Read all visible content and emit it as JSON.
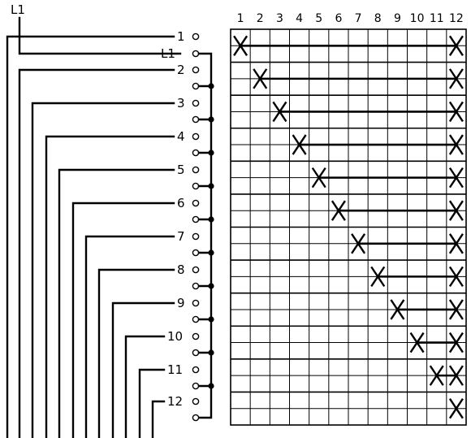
{
  "diagram": {
    "input_label": "L1",
    "column_labels": [
      "1",
      "2",
      "3",
      "4",
      "5",
      "6",
      "7",
      "8",
      "9",
      "10",
      "11",
      "12"
    ],
    "position_labels": [
      "1",
      "L1",
      "2",
      "3",
      "4",
      "5",
      "6",
      "7",
      "8",
      "9",
      "10",
      "11",
      "12"
    ],
    "positions": [
      {
        "label": "1",
        "contact_column": 1,
        "bar_to_column": 12
      },
      {
        "label": "2",
        "contact_column": 2,
        "bar_to_column": 12
      },
      {
        "label": "3",
        "contact_column": 3,
        "bar_to_column": 12
      },
      {
        "label": "4",
        "contact_column": 4,
        "bar_to_column": 12
      },
      {
        "label": "5",
        "contact_column": 5,
        "bar_to_column": 12
      },
      {
        "label": "6",
        "contact_column": 6,
        "bar_to_column": 12
      },
      {
        "label": "7",
        "contact_column": 7,
        "bar_to_column": 12
      },
      {
        "label": "8",
        "contact_column": 8,
        "bar_to_column": 12
      },
      {
        "label": "9",
        "contact_column": 9,
        "bar_to_column": 12
      },
      {
        "label": "10",
        "contact_column": 10,
        "bar_to_column": 12
      },
      {
        "label": "11",
        "contact_column": 11,
        "bar_to_column": 12
      },
      {
        "label": "12",
        "contact_column": 12,
        "bar_to_column": 12
      }
    ]
  }
}
